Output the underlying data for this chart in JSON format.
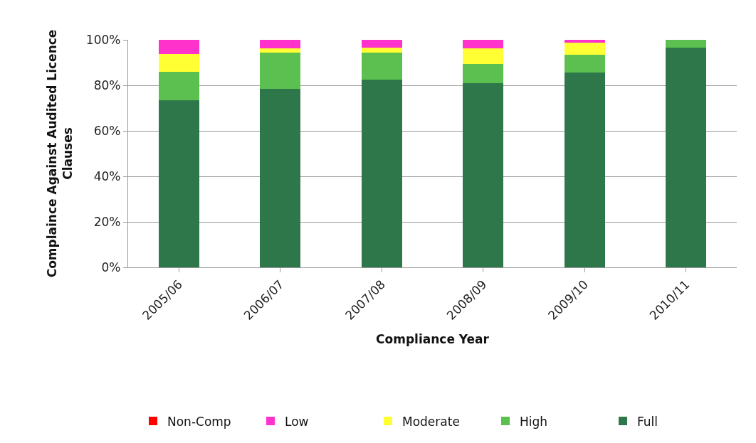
{
  "chart_data": {
    "type": "bar",
    "stacked": true,
    "xlabel": "Compliance Year",
    "ylabel": "Complaince Against Audited Licence Clauses",
    "categories": [
      "2005/06",
      "2006/07",
      "2007/08",
      "2008/09",
      "2009/10",
      "2010/11"
    ],
    "series": [
      {
        "name": "Full",
        "color": "#2d774a",
        "values": [
          73.4,
          78.3,
          82.5,
          81.0,
          85.6,
          96.7
        ]
      },
      {
        "name": "High",
        "color": "#5bc04f",
        "values": [
          12.6,
          16.0,
          11.9,
          8.3,
          7.8,
          3.3
        ]
      },
      {
        "name": "Moderate",
        "color": "#ffff33",
        "values": [
          7.6,
          2.1,
          2.2,
          7.0,
          5.5,
          0
        ]
      },
      {
        "name": "Low",
        "color": "#ff33cc",
        "values": [
          6.4,
          3.6,
          3.4,
          3.7,
          1.1,
          0
        ]
      },
      {
        "name": "Non-Comp",
        "color": "#ff0000",
        "values": [
          0,
          0,
          0,
          0,
          0,
          0
        ]
      }
    ],
    "ylim": [
      0,
      100
    ],
    "yticks": [
      {
        "value": 0,
        "label": "0%"
      },
      {
        "value": 20,
        "label": "20%"
      },
      {
        "value": 40,
        "label": "40%"
      },
      {
        "value": 60,
        "label": "60%"
      },
      {
        "value": 80,
        "label": "80%"
      },
      {
        "value": 100,
        "label": "100%"
      }
    ],
    "grid": "y",
    "legend": "bottom"
  }
}
